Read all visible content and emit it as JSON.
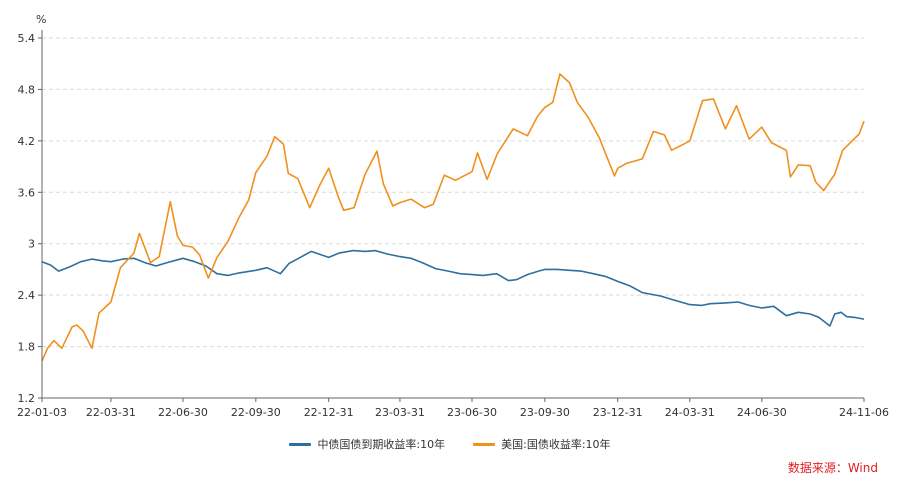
{
  "chart_data": {
    "type": "line",
    "title": "",
    "xlabel": "",
    "ylabel": "",
    "unit": "%",
    "ylim": [
      1.2,
      5.4
    ],
    "yticks": [
      1.2,
      1.8,
      2.4,
      3,
      3.6,
      4.2,
      4.8,
      5.4
    ],
    "ytick_labels": [
      "1.2",
      "1.8",
      "2.4",
      "3",
      "3.6",
      "4.2",
      "4.8",
      "5.4"
    ],
    "xlim": [
      "2022-01-03",
      "2024-11-06"
    ],
    "xticks": [
      "2022-01-03",
      "2022-03-31",
      "2022-06-30",
      "2022-09-30",
      "2022-12-31",
      "2023-03-31",
      "2023-06-30",
      "2023-09-30",
      "2023-12-31",
      "2024-03-31",
      "2024-06-30",
      "2024-11-06"
    ],
    "xtick_labels": [
      "22-01-03",
      "22-03-31",
      "22-06-30",
      "22-09-30",
      "22-12-31",
      "23-03-31",
      "23-06-30",
      "23-09-30",
      "23-12-31",
      "24-03-31",
      "24-06-30",
      "24-11-06"
    ],
    "grid": "horizontal dashed",
    "legend_position": "bottom",
    "colors": {
      "china": "#2e6f9e",
      "us": "#f0901e",
      "source": "#e02020"
    },
    "series": [
      {
        "name": "中债国债到期收益率:10年",
        "color": "#2e6f9e",
        "points": [
          [
            "2022-01-03",
            2.79
          ],
          [
            "2022-01-14",
            2.75
          ],
          [
            "2022-01-24",
            2.68
          ],
          [
            "2022-02-07",
            2.73
          ],
          [
            "2022-02-21",
            2.79
          ],
          [
            "2022-03-07",
            2.82
          ],
          [
            "2022-03-21",
            2.8
          ],
          [
            "2022-03-31",
            2.79
          ],
          [
            "2022-04-15",
            2.82
          ],
          [
            "2022-04-29",
            2.83
          ],
          [
            "2022-05-13",
            2.78
          ],
          [
            "2022-05-27",
            2.74
          ],
          [
            "2022-06-10",
            2.78
          ],
          [
            "2022-06-30",
            2.83
          ],
          [
            "2022-07-15",
            2.79
          ],
          [
            "2022-07-29",
            2.74
          ],
          [
            "2022-08-12",
            2.65
          ],
          [
            "2022-08-26",
            2.63
          ],
          [
            "2022-09-09",
            2.66
          ],
          [
            "2022-09-30",
            2.69
          ],
          [
            "2022-10-14",
            2.72
          ],
          [
            "2022-10-31",
            2.65
          ],
          [
            "2022-11-11",
            2.77
          ],
          [
            "2022-11-25",
            2.84
          ],
          [
            "2022-12-09",
            2.91
          ],
          [
            "2022-12-31",
            2.84
          ],
          [
            "2023-01-13",
            2.89
          ],
          [
            "2023-01-31",
            2.92
          ],
          [
            "2023-02-15",
            2.91
          ],
          [
            "2023-02-28",
            2.92
          ],
          [
            "2023-03-15",
            2.88
          ],
          [
            "2023-03-31",
            2.85
          ],
          [
            "2023-04-14",
            2.83
          ],
          [
            "2023-04-28",
            2.78
          ],
          [
            "2023-05-15",
            2.71
          ],
          [
            "2023-05-31",
            2.68
          ],
          [
            "2023-06-15",
            2.65
          ],
          [
            "2023-06-30",
            2.64
          ],
          [
            "2023-07-14",
            2.63
          ],
          [
            "2023-07-31",
            2.65
          ],
          [
            "2023-08-15",
            2.57
          ],
          [
            "2023-08-25",
            2.58
          ],
          [
            "2023-09-08",
            2.64
          ],
          [
            "2023-09-22",
            2.68
          ],
          [
            "2023-09-30",
            2.7
          ],
          [
            "2023-10-16",
            2.7
          ],
          [
            "2023-10-31",
            2.69
          ],
          [
            "2023-11-15",
            2.68
          ],
          [
            "2023-11-30",
            2.65
          ],
          [
            "2023-12-15",
            2.62
          ],
          [
            "2023-12-31",
            2.56
          ],
          [
            "2024-01-15",
            2.51
          ],
          [
            "2024-01-31",
            2.43
          ],
          [
            "2024-02-23",
            2.39
          ],
          [
            "2024-03-08",
            2.35
          ],
          [
            "2024-03-31",
            2.29
          ],
          [
            "2024-04-15",
            2.28
          ],
          [
            "2024-04-26",
            2.3
          ],
          [
            "2024-05-15",
            2.31
          ],
          [
            "2024-05-31",
            2.32
          ],
          [
            "2024-06-14",
            2.28
          ],
          [
            "2024-06-30",
            2.25
          ],
          [
            "2024-07-15",
            2.27
          ],
          [
            "2024-07-31",
            2.16
          ],
          [
            "2024-08-15",
            2.2
          ],
          [
            "2024-08-30",
            2.18
          ],
          [
            "2024-09-10",
            2.14
          ],
          [
            "2024-09-24",
            2.04
          ],
          [
            "2024-09-30",
            2.18
          ],
          [
            "2024-10-08",
            2.2
          ],
          [
            "2024-10-15",
            2.15
          ],
          [
            "2024-10-25",
            2.14
          ],
          [
            "2024-11-06",
            2.12
          ]
        ]
      },
      {
        "name": "美国:国债收益率:10年",
        "color": "#f0901e",
        "points": [
          [
            "2022-01-03",
            1.63
          ],
          [
            "2022-01-10",
            1.78
          ],
          [
            "2022-01-18",
            1.87
          ],
          [
            "2022-01-28",
            1.78
          ],
          [
            "2022-02-10",
            2.03
          ],
          [
            "2022-02-16",
            2.05
          ],
          [
            "2022-02-24",
            1.98
          ],
          [
            "2022-03-07",
            1.78
          ],
          [
            "2022-03-16",
            2.19
          ],
          [
            "2022-03-31",
            2.32
          ],
          [
            "2022-04-12",
            2.72
          ],
          [
            "2022-04-29",
            2.89
          ],
          [
            "2022-05-06",
            3.12
          ],
          [
            "2022-05-20",
            2.78
          ],
          [
            "2022-05-31",
            2.85
          ],
          [
            "2022-06-14",
            3.49
          ],
          [
            "2022-06-23",
            3.09
          ],
          [
            "2022-06-30",
            2.98
          ],
          [
            "2022-07-12",
            2.96
          ],
          [
            "2022-07-21",
            2.87
          ],
          [
            "2022-08-01",
            2.6
          ],
          [
            "2022-08-12",
            2.84
          ],
          [
            "2022-08-26",
            3.03
          ],
          [
            "2022-09-09",
            3.31
          ],
          [
            "2022-09-21",
            3.51
          ],
          [
            "2022-09-30",
            3.83
          ],
          [
            "2022-10-14",
            4.02
          ],
          [
            "2022-10-24",
            4.25
          ],
          [
            "2022-11-04",
            4.16
          ],
          [
            "2022-11-10",
            3.82
          ],
          [
            "2022-11-22",
            3.76
          ],
          [
            "2022-12-07",
            3.42
          ],
          [
            "2022-12-20",
            3.69
          ],
          [
            "2022-12-31",
            3.88
          ],
          [
            "2023-01-12",
            3.55
          ],
          [
            "2023-01-19",
            3.39
          ],
          [
            "2023-02-01",
            3.42
          ],
          [
            "2023-02-15",
            3.81
          ],
          [
            "2023-03-02",
            4.08
          ],
          [
            "2023-03-10",
            3.7
          ],
          [
            "2023-03-22",
            3.44
          ],
          [
            "2023-03-31",
            3.48
          ],
          [
            "2023-04-14",
            3.52
          ],
          [
            "2023-05-01",
            3.42
          ],
          [
            "2023-05-12",
            3.46
          ],
          [
            "2023-05-26",
            3.8
          ],
          [
            "2023-06-09",
            3.74
          ],
          [
            "2023-06-30",
            3.84
          ],
          [
            "2023-07-07",
            4.06
          ],
          [
            "2023-07-19",
            3.75
          ],
          [
            "2023-08-01",
            4.05
          ],
          [
            "2023-08-21",
            4.34
          ],
          [
            "2023-09-08",
            4.26
          ],
          [
            "2023-09-21",
            4.49
          ],
          [
            "2023-09-30",
            4.59
          ],
          [
            "2023-10-10",
            4.65
          ],
          [
            "2023-10-19",
            4.98
          ],
          [
            "2023-10-31",
            4.88
          ],
          [
            "2023-11-10",
            4.65
          ],
          [
            "2023-11-24",
            4.47
          ],
          [
            "2023-12-08",
            4.23
          ],
          [
            "2023-12-27",
            3.79
          ],
          [
            "2023-12-31",
            3.88
          ],
          [
            "2024-01-12",
            3.94
          ],
          [
            "2024-01-31",
            3.99
          ],
          [
            "2024-02-14",
            4.31
          ],
          [
            "2024-02-28",
            4.27
          ],
          [
            "2024-03-08",
            4.09
          ],
          [
            "2024-03-31",
            4.2
          ],
          [
            "2024-04-16",
            4.67
          ],
          [
            "2024-04-30",
            4.69
          ],
          [
            "2024-05-15",
            4.34
          ],
          [
            "2024-05-29",
            4.61
          ],
          [
            "2024-06-14",
            4.22
          ],
          [
            "2024-06-30",
            4.36
          ],
          [
            "2024-07-12",
            4.18
          ],
          [
            "2024-07-31",
            4.09
          ],
          [
            "2024-08-05",
            3.78
          ],
          [
            "2024-08-15",
            3.92
          ],
          [
            "2024-08-30",
            3.91
          ],
          [
            "2024-09-06",
            3.72
          ],
          [
            "2024-09-16",
            3.62
          ],
          [
            "2024-09-30",
            3.81
          ],
          [
            "2024-10-10",
            4.09
          ],
          [
            "2024-10-22",
            4.2
          ],
          [
            "2024-10-31",
            4.28
          ],
          [
            "2024-11-06",
            4.43
          ]
        ]
      }
    ]
  },
  "legend": {
    "china_label": "中债国债到期收益率:10年",
    "us_label": "美国:国债收益率:10年"
  },
  "source": "数据来源：Wind"
}
